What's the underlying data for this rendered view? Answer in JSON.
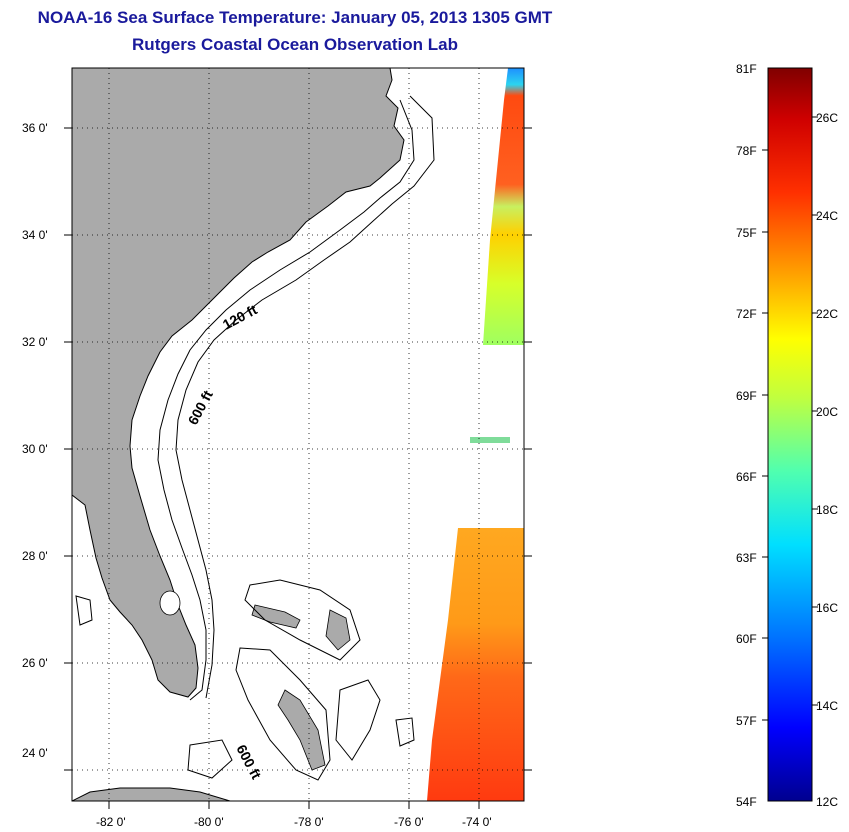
{
  "title": {
    "line1": "NOAA-16 Sea Surface Temperature:  January 05, 2013 1305 GMT",
    "line2": "Rutgers Coastal Ocean Observation Lab"
  },
  "map": {
    "lon_range": [
      -83,
      -72.6
    ],
    "lat_range": [
      23,
      37
    ],
    "lon_ticks": [
      {
        "value": -82,
        "label": "-82 0'"
      },
      {
        "value": -80,
        "label": "-80 0'"
      },
      {
        "value": -78,
        "label": "-78 0'"
      },
      {
        "value": -76,
        "label": "-76 0'"
      },
      {
        "value": -74,
        "label": "-74 0'"
      }
    ],
    "lat_ticks": [
      {
        "value": 36,
        "label": "36 0'"
      },
      {
        "value": 34,
        "label": "34 0'"
      },
      {
        "value": 32,
        "label": "32 0'"
      },
      {
        "value": 30,
        "label": "30 0'"
      },
      {
        "value": 28,
        "label": "28 0'"
      },
      {
        "value": 26,
        "label": "26 0'"
      },
      {
        "value": 24,
        "label": "24 0'"
      }
    ],
    "gridlines": true,
    "land_color": "#aaaaaa",
    "depth_labels": [
      "120 ft",
      "600 ft",
      "600 ft"
    ]
  },
  "colorbar": {
    "fahrenheit_labels": [
      "81F",
      "78F",
      "75F",
      "72F",
      "69F",
      "66F",
      "63F",
      "60F",
      "57F",
      "54F"
    ],
    "celsius_labels": [
      "26C",
      "24C",
      "22C",
      "20C",
      "18C",
      "16C",
      "14C",
      "12C"
    ],
    "colors": [
      "#00008f",
      "#0000ff",
      "#0070ff",
      "#00dfff",
      "#50ffaf",
      "#c0ff3f",
      "#ffff00",
      "#ffa000",
      "#ff3000",
      "#cf0000",
      "#800000"
    ]
  }
}
